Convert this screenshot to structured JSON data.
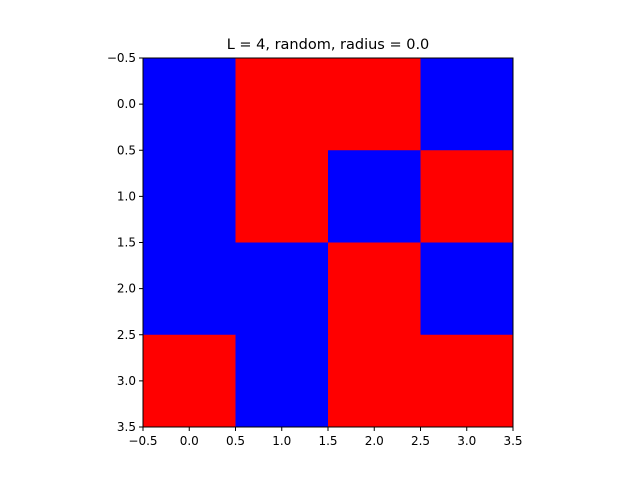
{
  "chart_data": {
    "type": "heatmap",
    "title": "L = 4, random, radius = 0.0",
    "xlabel": "",
    "ylabel": "",
    "xlim": [
      -0.5,
      3.5
    ],
    "ylim": [
      3.5,
      -0.5
    ],
    "x_ticks": [
      "−0.5",
      "0.0",
      "0.5",
      "1.0",
      "1.5",
      "2.0",
      "2.5",
      "3.0",
      "3.5"
    ],
    "y_ticks": [
      "−0.5",
      "0.0",
      "0.5",
      "1.0",
      "1.5",
      "2.0",
      "2.5",
      "3.0",
      "3.5"
    ],
    "grid": false,
    "colors": {
      "0": "#0000ff",
      "1": "#ff0000"
    },
    "values": [
      [
        0,
        1,
        1,
        0
      ],
      [
        0,
        1,
        0,
        1
      ],
      [
        0,
        0,
        1,
        0
      ],
      [
        1,
        0,
        1,
        1
      ]
    ]
  }
}
